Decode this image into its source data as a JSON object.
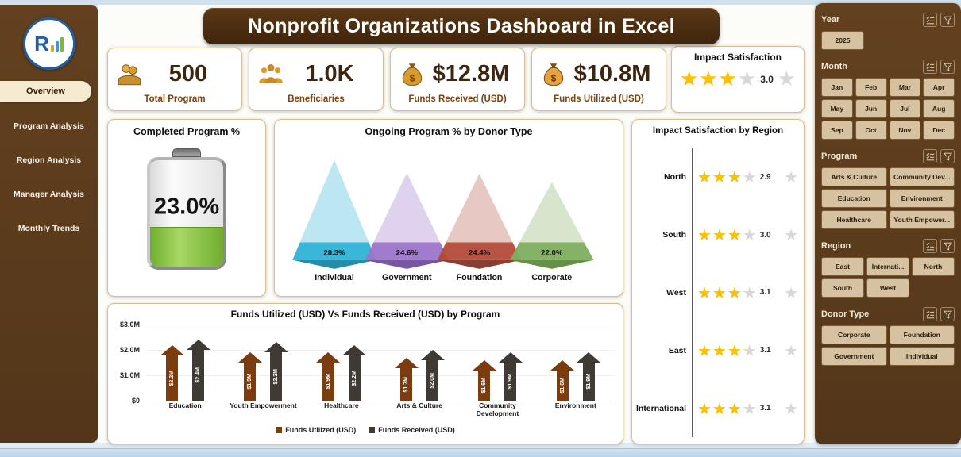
{
  "title": "Nonprofit Organizations Dashboard in Excel",
  "logo": {
    "letter": "R"
  },
  "sidebar": {
    "items": [
      {
        "label": "Overview",
        "active": true
      },
      {
        "label": "Program Analysis",
        "active": false
      },
      {
        "label": "Region Analysis",
        "active": false
      },
      {
        "label": "Manager Analysis",
        "active": false
      },
      {
        "label": "Monthly Trends",
        "active": false
      }
    ]
  },
  "kpis": [
    {
      "icon": "hands-coins-icon",
      "value": "500",
      "label": "Total Program"
    },
    {
      "icon": "beneficiaries-icon",
      "value": "1.0K",
      "label": "Beneficiaries"
    },
    {
      "icon": "money-bag-icon",
      "value": "$12.8M",
      "label": "Funds Received (USD)"
    },
    {
      "icon": "funds-utilized-icon",
      "value": "$10.8M",
      "label": "Funds Utilized (USD)"
    }
  ],
  "impact_kpi": {
    "title": "Impact Satisfaction",
    "rating": 3.0,
    "display": "3.0",
    "max": 5
  },
  "chart_data": [
    {
      "type": "gauge",
      "style": "battery",
      "title": "Completed Program %",
      "value": 23.0,
      "display": "23.0%",
      "fill_color": "#6fae2f"
    },
    {
      "type": "pyramid",
      "title": "Ongoing Program % by Donor Type",
      "categories": [
        "Individual",
        "Government",
        "Foundation",
        "Corporate"
      ],
      "values": [
        28.3,
        24.6,
        24.4,
        22.0
      ],
      "labels": [
        "28.3%",
        "24.6%",
        "24.4%",
        "22.0%"
      ],
      "colors": [
        "#2fb3d6",
        "#9b74c9",
        "#b34a39",
        "#7fae5e"
      ],
      "colors_dark": [
        "#1b86a4",
        "#6f4e9c",
        "#84352a",
        "#5c8a3e"
      ],
      "colors_light": [
        "rgba(47,179,214,0.32)",
        "rgba(155,116,201,0.32)",
        "rgba(179,74,57,0.30)",
        "rgba(127,174,94,0.32)"
      ]
    },
    {
      "type": "rating",
      "title": "Impact Satisfaction by Region",
      "categories": [
        "North",
        "South",
        "West",
        "East",
        "International"
      ],
      "values": [
        2.9,
        3.0,
        3.1,
        3.1,
        3.1
      ],
      "max": 5,
      "star_color": "#ffc000"
    },
    {
      "type": "bar",
      "title": "Funds Utilized (USD) Vs Funds Received (USD) by Program",
      "categories": [
        "Education",
        "Youth Empowerment",
        "Healthcare",
        "Arts & Culture",
        "Community Development",
        "Environment"
      ],
      "series": [
        {
          "name": "Funds Utilized (USD)",
          "color": "#7b3c0f",
          "values": [
            2.2,
            1.9,
            1.9,
            1.7,
            1.6,
            1.6
          ],
          "labels": [
            "$2.2M",
            "$1.9M",
            "$1.9M",
            "$1.7M",
            "$1.6M",
            "$1.6M"
          ]
        },
        {
          "name": "Funds Received (USD)",
          "color": "#3f3a33",
          "values": [
            2.4,
            2.3,
            2.2,
            2.0,
            1.9,
            1.9
          ],
          "labels": [
            "$2.4M",
            "$2.3M",
            "$2.2M",
            "$2.0M",
            "$1.9M",
            "$1.9M"
          ]
        }
      ],
      "ylabel_ticks": [
        "$0",
        "$1.0M",
        "$2.0M",
        "$3.0M"
      ],
      "ylim": [
        0,
        3
      ],
      "legend_position": "bottom"
    }
  ],
  "slicers": [
    {
      "label": "Year",
      "cols": 3,
      "buttons": [
        "2025"
      ]
    },
    {
      "label": "Month",
      "cols": 4,
      "buttons": [
        "Jan",
        "Feb",
        "Mar",
        "Apr",
        "May",
        "Jun",
        "Jul",
        "Aug",
        "Sep",
        "Oct",
        "Nov",
        "Dec"
      ]
    },
    {
      "label": "Program",
      "cols": 2,
      "buttons": [
        "Arts & Culture",
        "Community Dev...",
        "Education",
        "Environment",
        "Healthcare",
        "Youth Empower..."
      ]
    },
    {
      "label": "Region",
      "cols": 3,
      "buttons": [
        "East",
        "Internati...",
        "North",
        "South",
        "West"
      ]
    },
    {
      "label": "Donor Type",
      "cols": 2,
      "buttons": [
        "Corporate",
        "Foundation",
        "Government",
        "Individual"
      ]
    }
  ],
  "colors": {
    "panel_brown": "#5a3a1d",
    "banner_brown": "#3f250a",
    "card_border": "#d6bf97",
    "kpi_value": "#3d2610",
    "kpi_label": "#7a4310",
    "star_gold": "#ffc000",
    "star_gray": "#d8d8d8",
    "slicer_button": "#d6c1a1"
  }
}
